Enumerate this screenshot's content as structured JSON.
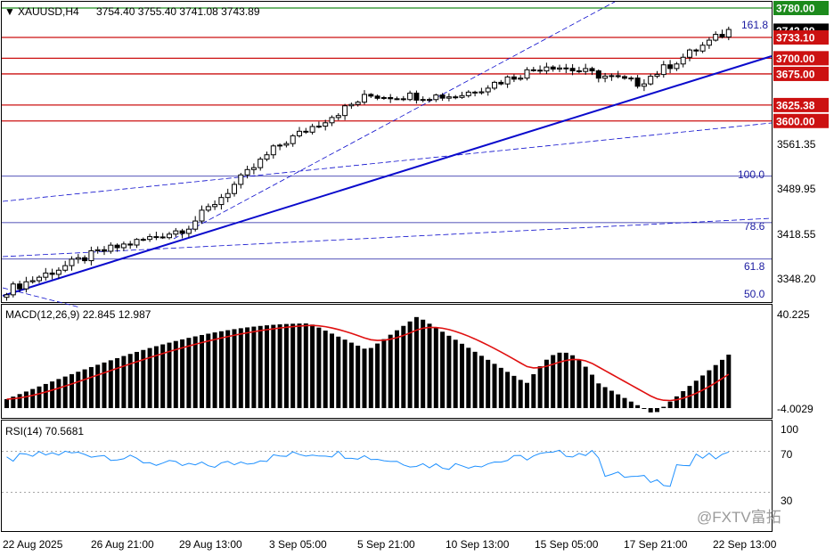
{
  "header": {
    "symbol_text": "XAUUSD,H4",
    "ohlc_text": "3754.40 3755.40 3741.08 3743.89"
  },
  "price_axis": {
    "ticks": [
      "3561.35",
      "3489.95",
      "3418.55",
      "3348.20"
    ],
    "tags": [
      {
        "text": "3780.00",
        "value": 3780.0,
        "color": "#1c8a1c"
      },
      {
        "text": "3743.89",
        "value": 3743.89,
        "color": "#000000"
      },
      {
        "text": "3733.10",
        "value": 3733.1,
        "color": "#cc1111"
      },
      {
        "text": "3700.00",
        "value": 3700.0,
        "color": "#cc1111"
      },
      {
        "text": "3675.00",
        "value": 3675.0,
        "color": "#cc1111"
      },
      {
        "text": "3625.38",
        "value": 3625.38,
        "color": "#cc1111"
      },
      {
        "text": "3600.00",
        "value": 3600.0,
        "color": "#cc1111"
      }
    ]
  },
  "fib_labels": [
    {
      "text": "161.8",
      "level": 3733.1
    },
    {
      "text": "100.0",
      "level": 3512.0
    },
    {
      "text": "78.6",
      "level": 3438.0
    },
    {
      "text": "61.8",
      "level": 3380.0
    },
    {
      "text": "50.0",
      "level": 3339.0
    }
  ],
  "macd": {
    "label": "MACD(12,26,9) 22.845 12.987",
    "axis_top": "40.225",
    "axis_bottom": "-4.0029"
  },
  "rsi": {
    "label": "RSI(14) 70.5681",
    "levels": [
      "100",
      "70",
      "30"
    ]
  },
  "time_axis": {
    "labels": [
      "22 Aug 2025",
      "26 Aug 21:00",
      "29 Aug 13:00",
      "3 Sep 05:00",
      "5 Sep 21:00",
      "10 Sep 13:00",
      "15 Sep 05:00",
      "17 Sep 21:00",
      "22 Sep 13:00"
    ]
  },
  "watermark": {
    "text": "@FXTV富拓"
  },
  "colors": {
    "bull": "#ffffff",
    "bear": "#000000",
    "resistance": "#cc1111",
    "support": "#0a0acc",
    "signal": "#e01010",
    "rsi_line": "#1e90ff"
  },
  "chart_data": {
    "type": "candlestick",
    "symbol": "XAUUSD",
    "timeframe": "H4",
    "y_range": [
      3325,
      3790
    ],
    "horizontal_levels": [
      3780.0,
      3733.1,
      3700.0,
      3675.0,
      3625.38,
      3600.0
    ],
    "close_path": [
      {
        "x": "22 Aug 2025",
        "close": 3330
      },
      {
        "x": "26 Aug 21:00",
        "close": 3390
      },
      {
        "x": "29 Aug 13:00",
        "close": 3430
      },
      {
        "x": "3 Sep 05:00",
        "close": 3560
      },
      {
        "x": "5 Sep 21:00",
        "close": 3640
      },
      {
        "x": "10 Sep 13:00",
        "close": 3640
      },
      {
        "x": "15 Sep 05:00",
        "close": 3690
      },
      {
        "x": "17 Sep 21:00",
        "close": 3660
      },
      {
        "x": "22 Sep 13:00",
        "close": 3743.89
      }
    ],
    "indicators": {
      "macd": {
        "params": "12,26,9",
        "value": 22.845,
        "signal": 12.987,
        "range": [
          -4.0029,
          40.225
        ]
      },
      "rsi": {
        "period": 14,
        "value": 70.5681,
        "levels": [
          30,
          70,
          100
        ]
      }
    }
  }
}
